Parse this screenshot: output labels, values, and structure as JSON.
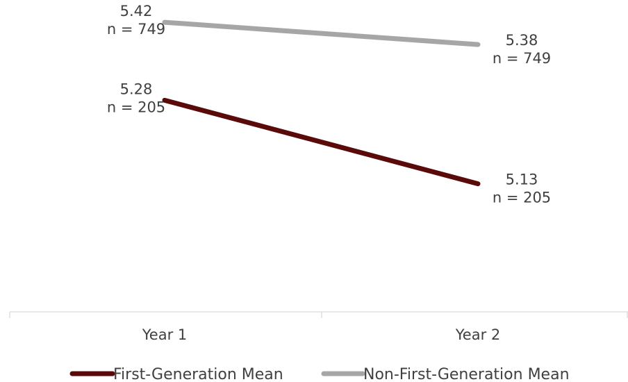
{
  "chart_data": {
    "type": "line",
    "title": "",
    "xlabel": "",
    "ylabel": "",
    "categories": [
      "Year 1",
      "Year 2"
    ],
    "y_range": [
      4.9,
      5.46
    ],
    "grid": false,
    "legend_position": "bottom",
    "series": [
      {
        "name": "First-Generation Mean",
        "color": "#5b0a0a",
        "values": [
          5.28,
          5.13
        ],
        "labels": [
          [
            "5.28",
            "n = 205"
          ],
          [
            "5.13",
            "n = 205"
          ]
        ]
      },
      {
        "name": "Non-First-Generation Mean",
        "color": "#a6a6a6",
        "values": [
          5.42,
          5.38
        ],
        "labels": [
          [
            "5.42",
            "n = 749"
          ],
          [
            "5.38",
            "n = 749"
          ]
        ]
      }
    ]
  }
}
